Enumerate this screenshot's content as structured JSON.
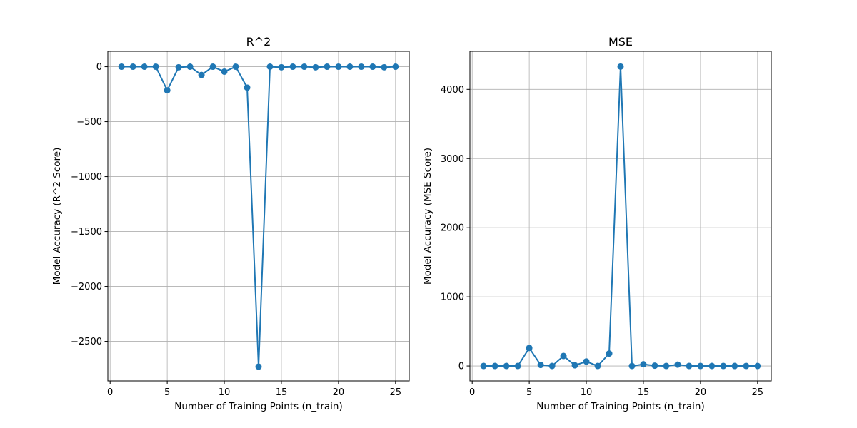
{
  "chart_data": [
    {
      "type": "line",
      "title": "R^2",
      "xlabel": "Number of Training Points (n_train)",
      "ylabel": "Model Accuracy (R^2 Score)",
      "xlim": [
        -0.2,
        26.2
      ],
      "ylim": [
        -2860,
        140
      ],
      "xticks": [
        0,
        5,
        10,
        15,
        20,
        25
      ],
      "yticks": [
        0,
        -500,
        -1000,
        -1500,
        -2000,
        -2500
      ],
      "ytick_labels": [
        "0",
        "−500",
        "−1000",
        "−1500",
        "−2000",
        "−2500"
      ],
      "grid": true,
      "color": "#1f77b4",
      "marker": "circle",
      "x": [
        1,
        2,
        3,
        4,
        5,
        6,
        7,
        8,
        9,
        10,
        11,
        12,
        13,
        14,
        15,
        16,
        17,
        18,
        19,
        20,
        21,
        22,
        23,
        24,
        25
      ],
      "y": [
        0,
        0,
        0,
        0,
        -215,
        -5,
        0,
        -75,
        0,
        -45,
        0,
        -190,
        -2730,
        0,
        -5,
        0,
        0,
        -5,
        0,
        0,
        0,
        0,
        0,
        -5,
        0
      ]
    },
    {
      "type": "line",
      "title": "MSE",
      "xlabel": "Number of Training Points (n_train)",
      "ylabel": "Model Accuracy (MSE Score)",
      "xlim": [
        -0.2,
        26.2
      ],
      "ylim": [
        -216,
        4550
      ],
      "xticks": [
        0,
        5,
        10,
        15,
        20,
        25
      ],
      "yticks": [
        0,
        1000,
        2000,
        3000,
        4000
      ],
      "ytick_labels": [
        "0",
        "1000",
        "2000",
        "3000",
        "4000"
      ],
      "grid": true,
      "color": "#1f77b4",
      "marker": "circle",
      "x": [
        1,
        2,
        3,
        4,
        5,
        6,
        7,
        8,
        9,
        10,
        11,
        12,
        13,
        14,
        15,
        16,
        17,
        18,
        19,
        20,
        21,
        22,
        23,
        24,
        25
      ],
      "y": [
        0,
        0,
        0,
        0,
        260,
        15,
        0,
        145,
        10,
        65,
        0,
        180,
        4330,
        0,
        25,
        5,
        0,
        20,
        0,
        0,
        0,
        0,
        0,
        0,
        0
      ]
    }
  ]
}
